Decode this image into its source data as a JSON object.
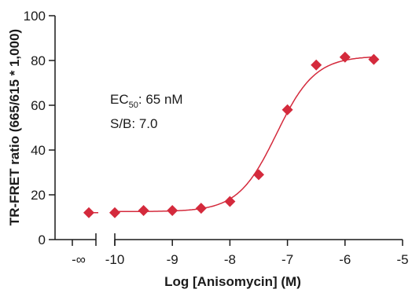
{
  "chart_data": {
    "type": "scatter",
    "xlabel": "Log [Anisomycin] (M)",
    "ylabel": "TR-FRET ratio (665/615 * 1,000)",
    "ylim": [
      0,
      100
    ],
    "xlim": [
      -10,
      -5
    ],
    "x_ticks": [
      -10,
      -9,
      -8,
      -7,
      -6,
      -5
    ],
    "x_tick_labels": [
      "-10",
      "-9",
      "-8",
      "-7",
      "-6",
      "-5"
    ],
    "y_ticks": [
      0,
      20,
      40,
      60,
      80,
      100
    ],
    "y_tick_labels": [
      "0",
      "20",
      "40",
      "60",
      "80",
      "100"
    ],
    "axis_break": true,
    "neg_inf_label": "-∞",
    "neg_inf_point": {
      "x": "-∞",
      "y": 12
    },
    "series": [
      {
        "color": "#d42a3c",
        "marker": "diamond",
        "points": [
          {
            "x": -10,
            "y": 12
          },
          {
            "x": -9.5,
            "y": 13
          },
          {
            "x": -9,
            "y": 13
          },
          {
            "x": -8.5,
            "y": 14
          },
          {
            "x": -8,
            "y": 17
          },
          {
            "x": -7.5,
            "y": 29
          },
          {
            "x": -7,
            "y": 58
          },
          {
            "x": -6.5,
            "y": 78
          },
          {
            "x": -6,
            "y": 81.5
          },
          {
            "x": -5.5,
            "y": 80.5
          }
        ]
      }
    ],
    "fit": {
      "type": "four-parameter-logistic",
      "bottom": 12.5,
      "top": 82,
      "log_ec50": -7.19,
      "hill": 1.3,
      "x_range": [
        -10,
        -5.5
      ]
    },
    "annotations": {
      "ec50_prefix": "EC",
      "ec50_sub": "50",
      "ec50_value": ": 65 nM",
      "sb": "S/B: 7.0"
    },
    "grid": false
  }
}
